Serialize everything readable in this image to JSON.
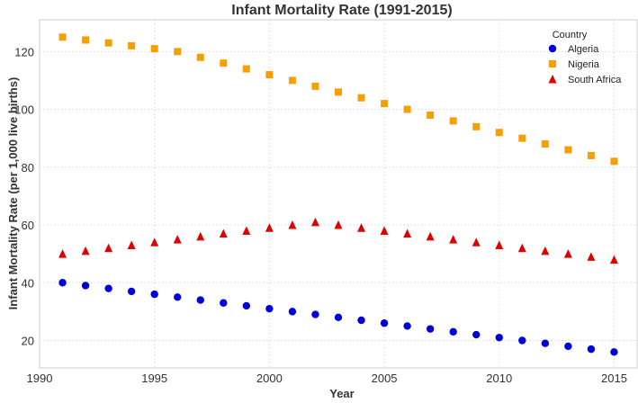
{
  "chart_data": {
    "type": "scatter",
    "title": "Infant Mortality Rate (1991-2015)",
    "xlabel": "Year",
    "ylabel": "Infant Mortality Rate (per 1,000 live births)",
    "xlim": [
      1990,
      2016
    ],
    "ylim": [
      10.5,
      131
    ],
    "xticks": [
      1990,
      1995,
      2000,
      2005,
      2010,
      2015
    ],
    "yticks": [
      20,
      40,
      60,
      80,
      100,
      120
    ],
    "grid": true,
    "legend": {
      "title": "Country",
      "placement": "top-right"
    },
    "x": [
      1991,
      1992,
      1993,
      1994,
      1995,
      1996,
      1997,
      1998,
      1999,
      2000,
      2001,
      2002,
      2003,
      2004,
      2005,
      2006,
      2007,
      2008,
      2009,
      2010,
      2011,
      2012,
      2013,
      2014,
      2015
    ],
    "series": [
      {
        "name": "Algeria",
        "marker": "circle",
        "color": "#0000dd",
        "values": [
          40,
          39,
          38,
          37,
          36,
          35,
          34,
          33,
          32,
          31,
          30,
          29,
          28,
          27,
          26,
          25,
          24,
          23,
          22,
          21,
          20,
          19,
          18,
          17,
          16
        ]
      },
      {
        "name": "Nigeria",
        "marker": "square",
        "color": "#f5a000",
        "values": [
          125,
          124,
          123,
          122,
          121,
          120,
          118,
          116,
          114,
          112,
          110,
          108,
          106,
          104,
          102,
          100,
          98,
          96,
          94,
          92,
          90,
          88,
          86,
          84,
          82
        ]
      },
      {
        "name": "South Africa",
        "marker": "triangle",
        "color": "#e00000",
        "values": [
          50,
          51,
          52,
          53,
          54,
          55,
          56,
          57,
          58,
          59,
          60,
          61,
          60,
          59,
          58,
          57,
          56,
          55,
          54,
          53,
          52,
          51,
          50,
          49,
          48
        ]
      }
    ]
  }
}
